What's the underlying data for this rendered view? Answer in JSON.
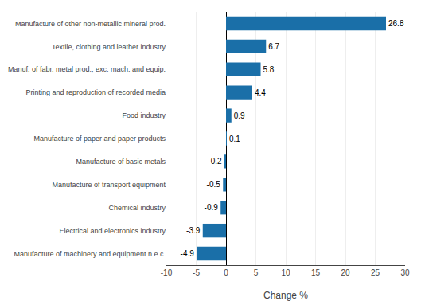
{
  "chart_data": {
    "type": "bar",
    "orientation": "horizontal",
    "categories": [
      "Manufacture of machinery and equipment n.e.c.",
      "Electrical and electronics industry",
      "Chemical industry",
      "Manufacture of transport equipment",
      "Manufacture of basic metals",
      "Manufacture of paper and paper products",
      "Food industry",
      "Printing and reproduction of recorded media",
      "Manuf. of fabr. metal prod., exc. mach. and equip.",
      "Textile, clothing and leather industry",
      "Manufacture of other non-metallic mineral prod."
    ],
    "values": [
      -4.9,
      -3.9,
      -0.9,
      -0.5,
      -0.2,
      0.1,
      0.9,
      4.4,
      5.8,
      6.7,
      26.8
    ],
    "color": "#1a6fa8",
    "xlabel": "Change %",
    "xlim": [
      -10,
      30
    ],
    "xticks": [
      -10,
      -5,
      0,
      5,
      10,
      15,
      20,
      25,
      30
    ],
    "grid": true,
    "data_labels": true
  }
}
